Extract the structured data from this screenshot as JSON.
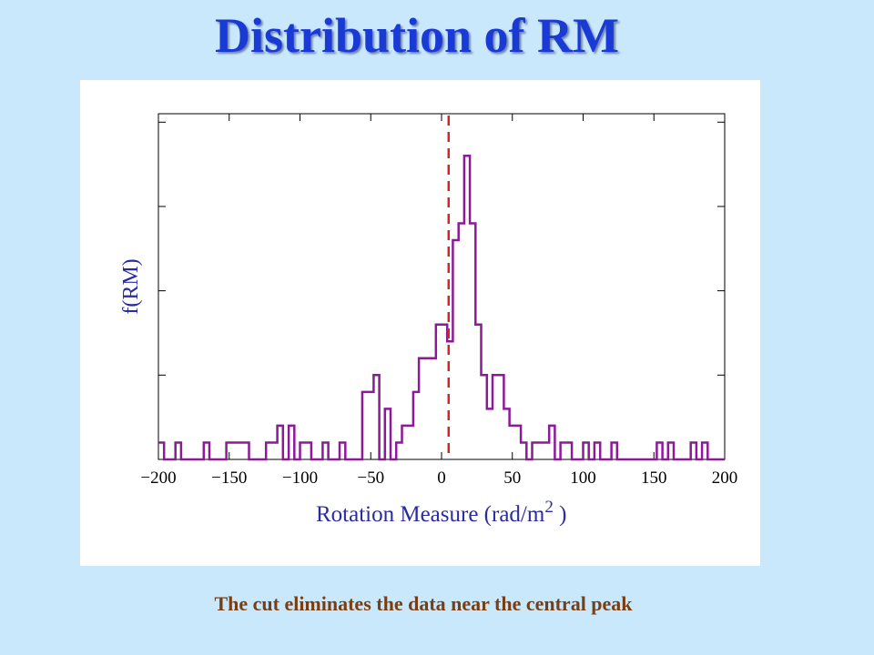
{
  "slide": {
    "title": "Distribution of RM",
    "caption": "The cut eliminates the data near the central peak"
  },
  "colors": {
    "background": "#c9e8fb",
    "title": "#1a3ad6",
    "caption": "#7a3e12",
    "axis_label": "#2b2ba0",
    "histogram": "#8b1a96",
    "cut_line": "#e02020"
  },
  "chart_data": {
    "type": "histogram",
    "title": "",
    "xlabel": "Rotation Measure (rad/m",
    "xlabel_superscript": "2",
    "xlabel_suffix": " )",
    "ylabel": "f(RM)",
    "xlim": [
      -200,
      200
    ],
    "ylim": [
      0,
      20.5
    ],
    "x_ticks": [
      -200,
      -150,
      -100,
      -50,
      0,
      50,
      100,
      150,
      200
    ],
    "x_tick_labels": [
      "−200",
      "−150",
      "−100",
      "−50",
      "0",
      "50",
      "100",
      "150",
      "200"
    ],
    "y_ticks": [
      0,
      5,
      10,
      15,
      20
    ],
    "y_tick_labels": [],
    "grid": false,
    "bin_width": 4,
    "bin_start": -200,
    "bin_counts": [
      1,
      0,
      0,
      1,
      0,
      0,
      0,
      0,
      1,
      0,
      0,
      0,
      1,
      1,
      1,
      1,
      0,
      0,
      0,
      1,
      1,
      2,
      0,
      2,
      0,
      1,
      1,
      0,
      0,
      1,
      0,
      0,
      1,
      0,
      0,
      0,
      4,
      4,
      5,
      0,
      3,
      0,
      1,
      2,
      2,
      4,
      6,
      6,
      6,
      8,
      8,
      7,
      13,
      14,
      18,
      14,
      8,
      5,
      3,
      5,
      5,
      3,
      2,
      2,
      1,
      0,
      1,
      1,
      1,
      2,
      0,
      1,
      1,
      0,
      0,
      1,
      0,
      1,
      0,
      0,
      1,
      0,
      0,
      0,
      0,
      0,
      0,
      0,
      1,
      0,
      1,
      0,
      0,
      0,
      1,
      0,
      1,
      0,
      0,
      0
    ],
    "cut_line_x": 5
  }
}
